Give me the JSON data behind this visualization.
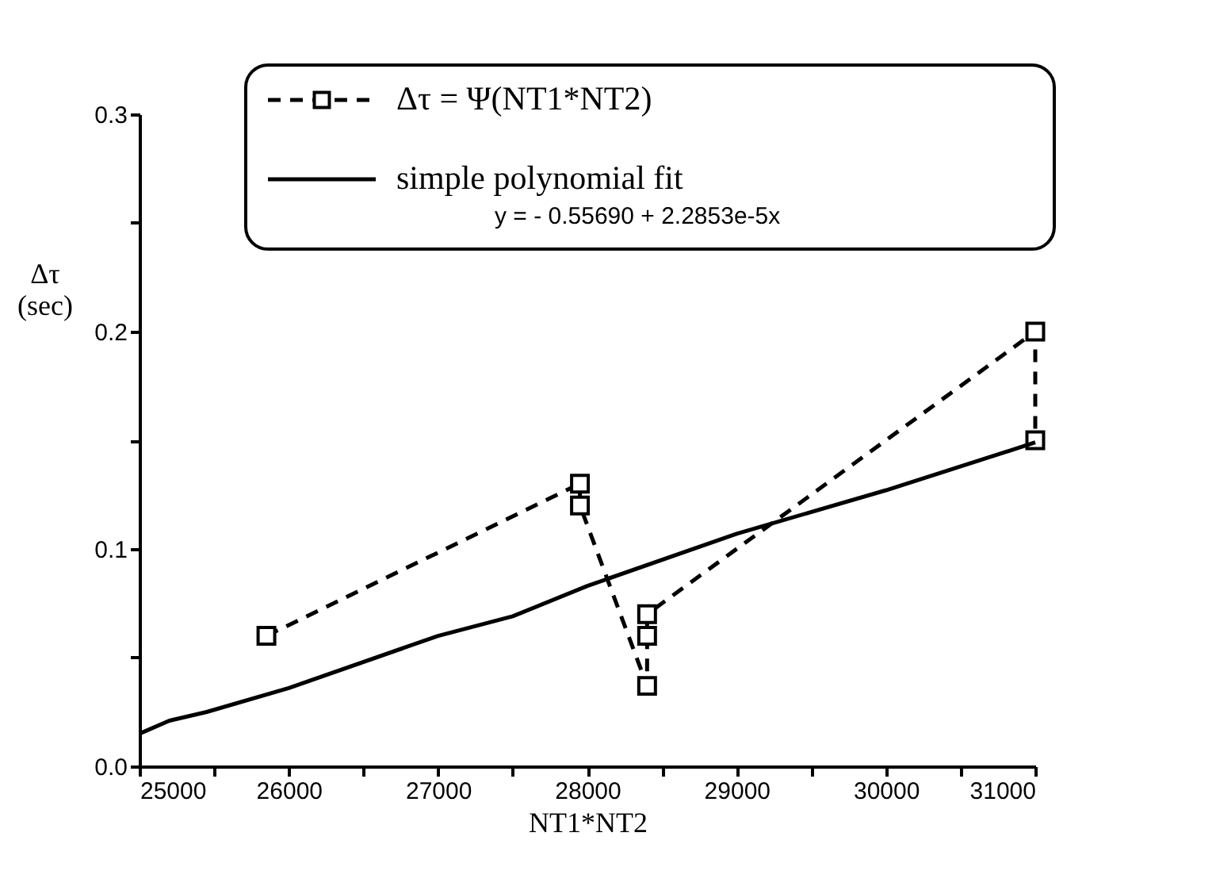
{
  "chart_data": {
    "type": "line",
    "xlabel": "NT1*NT2",
    "ylabel": "Δτ\n(sec)",
    "xlim": [
      25000,
      31000
    ],
    "ylim": [
      0,
      0.3
    ],
    "xticks": [
      25000,
      {
        "value": 25500,
        "label": null
      },
      26000,
      {
        "value": 26500,
        "label": null
      },
      27000,
      {
        "value": 27500,
        "label": null
      },
      28000,
      {
        "value": 28500,
        "label": null
      },
      29000,
      {
        "value": 29500,
        "label": null
      },
      30000,
      {
        "value": 30500,
        "label": null
      },
      31000
    ],
    "yticks": [
      {
        "value": 0,
        "label": "0.0"
      },
      {
        "value": 0.05,
        "label": null
      },
      0.1,
      {
        "value": 0.15,
        "label": null
      },
      0.2,
      {
        "value": 0.25,
        "label": null
      },
      0.3
    ],
    "grid": false,
    "legend": "top",
    "annotations": [
      "y =  - 0.55690 + 2.2853e-5x"
    ],
    "series": [
      {
        "name": "Δτ = Ψ(NT1*NT2)",
        "color": "#000000",
        "line_style": "dashed",
        "marker": "square",
        "x": [
          25850,
          27950,
          27950,
          28400,
          28400,
          28400,
          31000,
          31000
        ],
        "values": [
          0.06,
          0.13,
          0.12,
          0.037,
          0.06,
          0.07,
          0.2,
          0.15
        ]
      },
      {
        "name": "simple polynomial fit",
        "color": "#000000",
        "line_style": "solid",
        "marker": "none",
        "x": [
          25000,
          25200,
          25450,
          26000,
          27000,
          27500,
          28000,
          29000,
          29200,
          30000,
          31000
        ],
        "values": [
          0.015,
          0.021,
          0.025,
          0.036,
          0.06,
          0.069,
          0.083,
          0.107,
          0.111,
          0.127,
          0.149
        ]
      }
    ]
  }
}
